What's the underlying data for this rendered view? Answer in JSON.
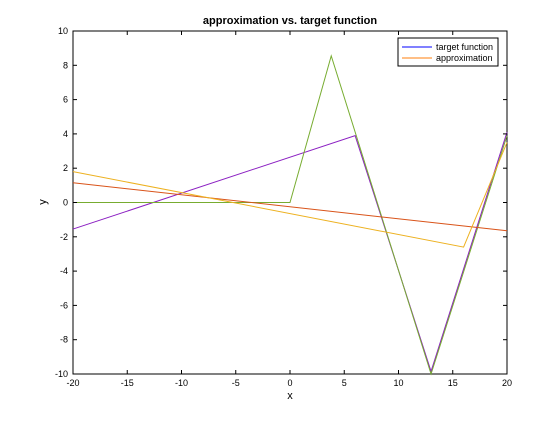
{
  "chart_data": {
    "type": "line",
    "title": "approximation vs. target function",
    "xlabel": "x",
    "ylabel": "y",
    "xlim": [
      -20,
      20
    ],
    "ylim": [
      -10,
      10
    ],
    "xticks": [
      -20,
      -15,
      -10,
      -5,
      0,
      5,
      10,
      15,
      20
    ],
    "yticks": [
      -10,
      -8,
      -6,
      -4,
      -2,
      0,
      2,
      4,
      6,
      8,
      10
    ],
    "grid": false,
    "legend_position": "top-right",
    "legend": [
      {
        "label": "target function",
        "color": "#0000ff"
      },
      {
        "label": "approximation",
        "color": "#ff7f0e"
      }
    ],
    "series": [
      {
        "color": "#8b1fc2",
        "points": [
          [
            -20,
            -1.55
          ],
          [
            6,
            3.9
          ],
          [
            13,
            -9.85
          ],
          [
            20,
            4.1
          ]
        ]
      },
      {
        "color": "#77ac30",
        "points": [
          [
            -20,
            0
          ],
          [
            0,
            0
          ],
          [
            3.8,
            8.55
          ],
          [
            13,
            -10
          ],
          [
            20,
            3.9
          ]
        ]
      },
      {
        "color": "#d95319",
        "points": [
          [
            -20,
            1.15
          ],
          [
            20,
            -1.65
          ]
        ]
      },
      {
        "color": "#edb120",
        "points": [
          [
            -20,
            1.8
          ],
          [
            16,
            -2.6
          ],
          [
            20,
            3.5
          ]
        ]
      }
    ]
  }
}
